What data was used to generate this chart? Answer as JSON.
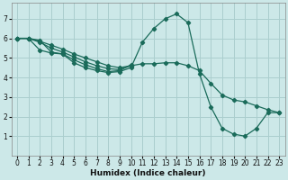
{
  "xlabel": "Humidex (Indice chaleur)",
  "bg_color": "#cce8e8",
  "grid_color": "#aacece",
  "line_color": "#1a6b5a",
  "xlim": [
    -0.5,
    23.5
  ],
  "ylim": [
    0,
    7.8
  ],
  "xticks": [
    0,
    1,
    2,
    3,
    4,
    5,
    6,
    7,
    8,
    9,
    10,
    11,
    12,
    13,
    14,
    15,
    16,
    17,
    18,
    19,
    20,
    21,
    22,
    23
  ],
  "yticks": [
    1,
    2,
    3,
    4,
    5,
    6,
    7
  ],
  "curve1_x": [
    0,
    1,
    2,
    3,
    4,
    5,
    6,
    7,
    8,
    9,
    10,
    11,
    12,
    13,
    14,
    15,
    16,
    17,
    18,
    19,
    20,
    21,
    22,
    23
  ],
  "curve1_y": [
    6.0,
    6.0,
    5.9,
    5.3,
    5.2,
    4.75,
    4.5,
    4.35,
    4.25,
    4.3,
    4.5,
    5.8,
    6.5,
    7.0,
    7.25,
    6.8,
    4.2,
    2.5,
    1.4,
    1.1,
    1.0,
    1.4,
    2.2,
    2.2
  ],
  "curve2_x": [
    0,
    1,
    2,
    3,
    4,
    5,
    6,
    7,
    8,
    9,
    10
  ],
  "curve2_y": [
    6.0,
    6.0,
    5.4,
    5.25,
    5.2,
    4.9,
    4.65,
    4.45,
    4.3,
    4.35,
    4.65
  ],
  "curve3_x": [
    0,
    1,
    2,
    3,
    4,
    5,
    6,
    7,
    8,
    9,
    10
  ],
  "curve3_y": [
    6.0,
    6.0,
    5.8,
    5.5,
    5.3,
    5.05,
    4.8,
    4.6,
    4.45,
    4.4,
    4.6
  ],
  "curve4_x": [
    0,
    1,
    2,
    3,
    4,
    5,
    6,
    7,
    8,
    9,
    10,
    11,
    12,
    13,
    14,
    15,
    16,
    17,
    18,
    19,
    20,
    21,
    22,
    23
  ],
  "curve4_y": [
    6.0,
    6.0,
    5.85,
    5.65,
    5.45,
    5.2,
    5.0,
    4.8,
    4.6,
    4.5,
    4.6,
    4.7,
    4.7,
    4.75,
    4.75,
    4.6,
    4.35,
    3.7,
    3.1,
    2.85,
    2.75,
    2.55,
    2.35,
    2.2
  ]
}
